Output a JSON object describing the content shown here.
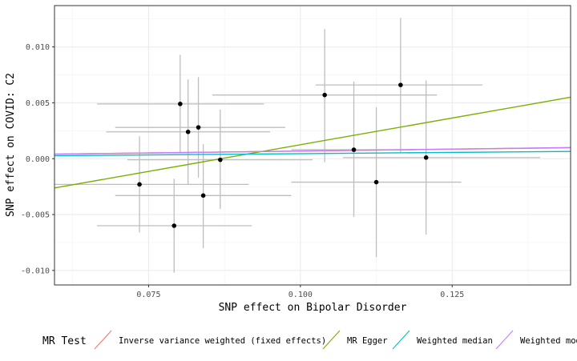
{
  "chart_data": {
    "type": "scatter",
    "xlabel": "SNP effect on Bipolar Disorder",
    "ylabel": "SNP effect on COVID: C2",
    "xlim": [
      0.0595,
      0.1445
    ],
    "ylim": [
      -0.0113,
      0.0137
    ],
    "x_ticks": [
      0.075,
      0.1,
      0.125
    ],
    "x_tick_labels": [
      "0.075",
      "0.100",
      "0.125"
    ],
    "y_ticks": [
      -0.01,
      -0.005,
      0.0,
      0.005,
      0.01
    ],
    "y_tick_labels": [
      "-0.010",
      "-0.005",
      "0.000",
      "0.005",
      "0.010"
    ],
    "grid": true,
    "legend_position": "bottom",
    "legend_title": "MR Test",
    "points": [
      {
        "x": 0.0735,
        "y": -0.0023,
        "xmin": 0.0555,
        "xmax": 0.0915,
        "ymin": -0.0066,
        "ymax": 0.002
      },
      {
        "x": 0.0792,
        "y": -0.006,
        "xmin": 0.0665,
        "xmax": 0.092,
        "ymin": -0.0102,
        "ymax": -0.0018
      },
      {
        "x": 0.0802,
        "y": 0.0049,
        "xmin": 0.0665,
        "xmax": 0.094,
        "ymin": 0.0005,
        "ymax": 0.0093
      },
      {
        "x": 0.0815,
        "y": 0.0024,
        "xmin": 0.068,
        "xmax": 0.095,
        "ymin": -0.0023,
        "ymax": 0.0071
      },
      {
        "x": 0.0832,
        "y": 0.0028,
        "xmin": 0.0695,
        "xmax": 0.0975,
        "ymin": -0.0017,
        "ymax": 0.0073
      },
      {
        "x": 0.084,
        "y": -0.0033,
        "xmin": 0.0695,
        "xmax": 0.0985,
        "ymin": -0.008,
        "ymax": 0.0013
      },
      {
        "x": 0.0868,
        "y": -0.0001,
        "xmin": 0.0715,
        "xmax": 0.102,
        "ymin": -0.0045,
        "ymax": 0.0044
      },
      {
        "x": 0.104,
        "y": 0.0057,
        "xmin": 0.0855,
        "xmax": 0.1225,
        "ymin": -0.0003,
        "ymax": 0.0116
      },
      {
        "x": 0.1088,
        "y": 0.0008,
        "xmin": 0.0985,
        "xmax": 0.119,
        "ymin": -0.0052,
        "ymax": 0.0069
      },
      {
        "x": 0.1125,
        "y": -0.0021,
        "xmin": 0.0985,
        "xmax": 0.1265,
        "ymin": -0.0088,
        "ymax": 0.0046
      },
      {
        "x": 0.1165,
        "y": 0.0066,
        "xmin": 0.1025,
        "xmax": 0.13,
        "ymin": 0.0005,
        "ymax": 0.0126
      },
      {
        "x": 0.1207,
        "y": 0.0001,
        "xmin": 0.107,
        "xmax": 0.1395,
        "ymin": -0.0068,
        "ymax": 0.007
      }
    ],
    "lines": [
      {
        "name": "Inverse variance weighted (fixed effects)",
        "color": "#F8766D",
        "slope": 0.0068,
        "intercept": 0.0
      },
      {
        "name": "MR Egger",
        "color": "#7CAE00",
        "slope": 0.0955,
        "intercept": -0.0083
      },
      {
        "name": "Weighted median",
        "color": "#00BFC4",
        "slope": 0.0045,
        "intercept": 0.0
      },
      {
        "name": "Weighted mode",
        "color": "#C77CFF",
        "slope": 0.0069,
        "intercept": 0.0
      }
    ]
  }
}
